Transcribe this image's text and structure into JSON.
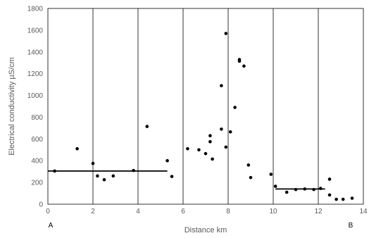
{
  "chart_data": {
    "type": "scatter",
    "title": "",
    "xlabel": "Distance km",
    "ylabel": "Electrical conductivity µS/cm",
    "xlim": [
      0,
      14
    ],
    "ylim": [
      0,
      1800
    ],
    "xticks": [
      0,
      2,
      4,
      6,
      8,
      10,
      12,
      14
    ],
    "yticks": [
      0,
      200,
      400,
      600,
      800,
      1000,
      1200,
      1400,
      1600,
      1800
    ],
    "grid": "vertical",
    "end_labels": {
      "start": "A",
      "end": "B"
    },
    "points": [
      {
        "x": 0.3,
        "y": 305
      },
      {
        "x": 1.3,
        "y": 510
      },
      {
        "x": 2.0,
        "y": 375
      },
      {
        "x": 2.2,
        "y": 260
      },
      {
        "x": 2.5,
        "y": 225
      },
      {
        "x": 2.9,
        "y": 260
      },
      {
        "x": 3.8,
        "y": 310
      },
      {
        "x": 4.4,
        "y": 715
      },
      {
        "x": 5.3,
        "y": 400
      },
      {
        "x": 5.5,
        "y": 255
      },
      {
        "x": 6.2,
        "y": 510
      },
      {
        "x": 6.7,
        "y": 500
      },
      {
        "x": 7.0,
        "y": 465
      },
      {
        "x": 7.2,
        "y": 630
      },
      {
        "x": 7.2,
        "y": 575
      },
      {
        "x": 7.3,
        "y": 415
      },
      {
        "x": 7.7,
        "y": 690
      },
      {
        "x": 7.7,
        "y": 1090
      },
      {
        "x": 7.9,
        "y": 525
      },
      {
        "x": 7.9,
        "y": 1570
      },
      {
        "x": 8.1,
        "y": 665
      },
      {
        "x": 8.3,
        "y": 890
      },
      {
        "x": 8.5,
        "y": 1330
      },
      {
        "x": 8.5,
        "y": 1315
      },
      {
        "x": 8.7,
        "y": 1270
      },
      {
        "x": 8.9,
        "y": 360
      },
      {
        "x": 9.0,
        "y": 245
      },
      {
        "x": 9.9,
        "y": 275
      },
      {
        "x": 10.1,
        "y": 165
      },
      {
        "x": 10.6,
        "y": 110
      },
      {
        "x": 11.0,
        "y": 135
      },
      {
        "x": 11.4,
        "y": 140
      },
      {
        "x": 11.8,
        "y": 135
      },
      {
        "x": 12.1,
        "y": 145
      },
      {
        "x": 12.5,
        "y": 230
      },
      {
        "x": 12.5,
        "y": 85
      },
      {
        "x": 12.8,
        "y": 45
      },
      {
        "x": 13.1,
        "y": 45
      },
      {
        "x": 13.5,
        "y": 55
      }
    ],
    "reference_lines": [
      {
        "x": [
          0,
          5.3
        ],
        "y": 305
      },
      {
        "x": [
          10.1,
          12.3
        ],
        "y": 140
      }
    ]
  }
}
